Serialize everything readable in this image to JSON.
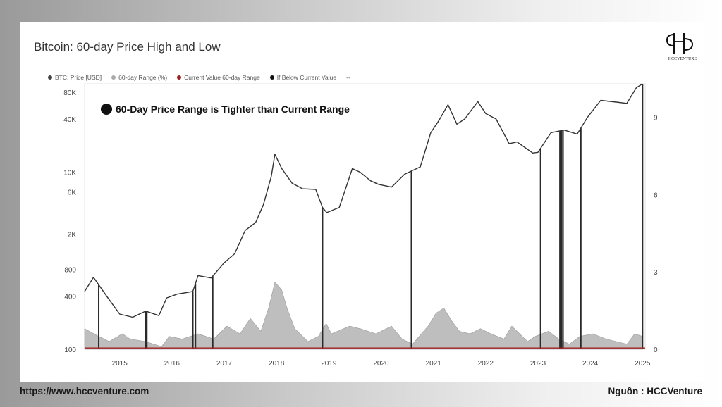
{
  "header": {
    "title": "Bitcoin: 60-day Price High and Low"
  },
  "logo": {
    "text": "HCCVENTURE"
  },
  "footer": {
    "website": "https://www.hccventure.com",
    "source": "Nguồn : HCCVenture"
  },
  "chart_data": {
    "type": "line",
    "title": "Bitcoin: 60-day Price High and Low",
    "annotation": "60-Day Price Range is Tighter than Current Range",
    "legend": [
      {
        "name": "BTC: Price [USD]",
        "color": "#444444"
      },
      {
        "name": "60-day Range (%)",
        "color": "#aaaaaa"
      },
      {
        "name": "Current Value 60-day Range",
        "color": "#a02020"
      },
      {
        "name": "If Below Current Value",
        "color": "#111111"
      },
      {
        "name": "--",
        "color": ""
      }
    ],
    "x_ticks": [
      "2015",
      "2016",
      "2017",
      "2018",
      "2019",
      "2020",
      "2021",
      "2022",
      "2023",
      "2024",
      "2025"
    ],
    "y_left_ticks": [
      {
        "label": "80K",
        "value": 80000
      },
      {
        "label": "40K",
        "value": 40000
      },
      {
        "label": "10K",
        "value": 10000
      },
      {
        "label": "6K",
        "value": 6000
      },
      {
        "label": "2K",
        "value": 2000
      },
      {
        "label": "800",
        "value": 800
      },
      {
        "label": "400",
        "value": 400
      },
      {
        "label": "100",
        "value": 100
      }
    ],
    "y_left_scale": "log",
    "y_right_ticks": [
      {
        "label": "9",
        "value": 9
      },
      {
        "label": "6",
        "value": 6
      },
      {
        "label": "3",
        "value": 3
      },
      {
        "label": "0",
        "value": 0
      }
    ],
    "current_range_value": 0.05,
    "price_series": {
      "name": "BTC: Price [USD]",
      "x": [
        2014.33,
        2014.5,
        2014.75,
        2015.0,
        2015.25,
        2015.5,
        2015.75,
        2015.9,
        2016.1,
        2016.4,
        2016.5,
        2016.75,
        2017.0,
        2017.2,
        2017.4,
        2017.6,
        2017.75,
        2017.9,
        2017.97,
        2018.1,
        2018.3,
        2018.5,
        2018.75,
        2018.88,
        2018.96,
        2019.2,
        2019.45,
        2019.6,
        2019.8,
        2019.95,
        2020.2,
        2020.45,
        2020.75,
        2020.95,
        2021.1,
        2021.28,
        2021.45,
        2021.6,
        2021.85,
        2022.0,
        2022.2,
        2022.45,
        2022.6,
        2022.9,
        2023.0,
        2023.25,
        2023.5,
        2023.75,
        2023.95,
        2024.2,
        2024.5,
        2024.7,
        2024.88,
        2025.0
      ],
      "y": [
        450,
        650,
        400,
        250,
        230,
        270,
        240,
        380,
        420,
        450,
        680,
        640,
        950,
        1200,
        2200,
        2700,
        4300,
        9000,
        16000,
        11000,
        7500,
        6500,
        6400,
        4000,
        3500,
        4000,
        11000,
        10000,
        8000,
        7300,
        6800,
        9500,
        11500,
        28000,
        38000,
        58000,
        35000,
        40000,
        63000,
        46000,
        40000,
        21000,
        22000,
        16500,
        16800,
        28000,
        30000,
        27000,
        42000,
        65000,
        62000,
        60000,
        90000,
        100000
      ]
    },
    "range_series": {
      "name": "60-day Range (%)",
      "x": [
        2014.33,
        2014.6,
        2014.8,
        2015.05,
        2015.2,
        2015.5,
        2015.8,
        2015.95,
        2016.2,
        2016.5,
        2016.8,
        2017.05,
        2017.3,
        2017.5,
        2017.7,
        2017.85,
        2017.97,
        2018.1,
        2018.2,
        2018.35,
        2018.6,
        2018.8,
        2018.95,
        2019.05,
        2019.4,
        2019.6,
        2019.9,
        2020.2,
        2020.4,
        2020.6,
        2020.9,
        2021.05,
        2021.2,
        2021.35,
        2021.5,
        2021.7,
        2021.9,
        2022.1,
        2022.35,
        2022.5,
        2022.8,
        2022.95,
        2023.2,
        2023.4,
        2023.6,
        2023.8,
        2024.05,
        2024.3,
        2024.5,
        2024.7,
        2024.85,
        2025.0
      ],
      "y": [
        0.8,
        0.5,
        0.3,
        0.6,
        0.4,
        0.3,
        0.1,
        0.5,
        0.4,
        0.6,
        0.4,
        0.9,
        0.6,
        1.2,
        0.7,
        1.6,
        2.6,
        2.3,
        1.6,
        0.8,
        0.3,
        0.5,
        1.0,
        0.6,
        0.9,
        0.8,
        0.6,
        0.9,
        0.4,
        0.2,
        0.9,
        1.4,
        1.6,
        1.1,
        0.7,
        0.6,
        0.8,
        0.6,
        0.4,
        0.9,
        0.3,
        0.5,
        0.7,
        0.4,
        0.2,
        0.5,
        0.6,
        0.4,
        0.3,
        0.2,
        0.6,
        0.5
      ]
    },
    "below_current_markers": [
      2014.6,
      2015.5,
      2015.52,
      2016.4,
      2016.45,
      2016.78,
      2018.88,
      2020.58,
      2023.05,
      2023.42,
      2023.45,
      2023.48,
      2023.82,
      2025.0
    ]
  }
}
